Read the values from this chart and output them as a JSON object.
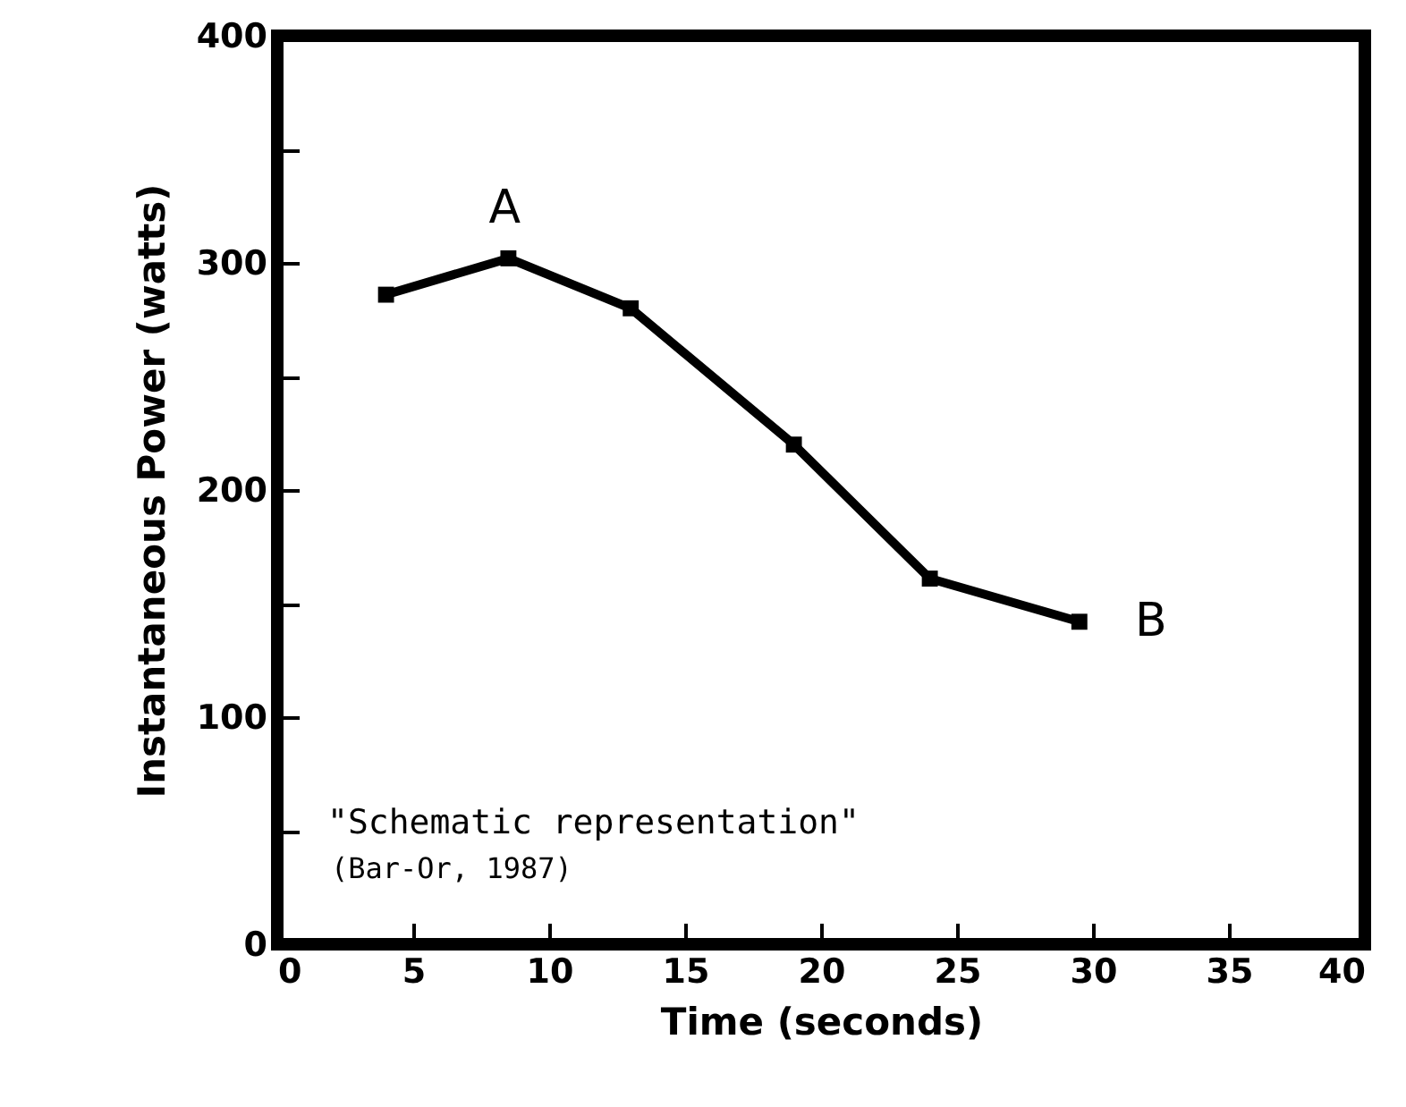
{
  "chart_data": {
    "type": "line",
    "xlabel": "Time (seconds)",
    "ylabel": "Instantaneous Power (watts)",
    "x": [
      4,
      8.5,
      13,
      19,
      24,
      29.5
    ],
    "series": [
      {
        "color": "#000000",
        "values": [
          286,
          302,
          280,
          220,
          161,
          142
        ]
      }
    ],
    "xlim": [
      0,
      40
    ],
    "xticks": [
      0,
      5,
      10,
      15,
      20,
      25,
      30,
      35,
      40
    ],
    "ylim": [
      0,
      400
    ],
    "yticks": [
      0,
      {
        "value": 50,
        "label": null
      },
      100,
      {
        "value": 150,
        "label": null
      },
      200,
      {
        "value": 250,
        "label": null
      },
      300,
      {
        "value": 350,
        "label": null
      },
      400
    ],
    "marker": "square",
    "line_style": "solid",
    "grid": false,
    "annotations": [
      {
        "text": "A",
        "x": 8.5,
        "y": 302
      },
      {
        "text": "B",
        "x": 29.5,
        "y": 142
      },
      "\"Schematic representation\"",
      "(Bar-Or, 1987)"
    ]
  }
}
